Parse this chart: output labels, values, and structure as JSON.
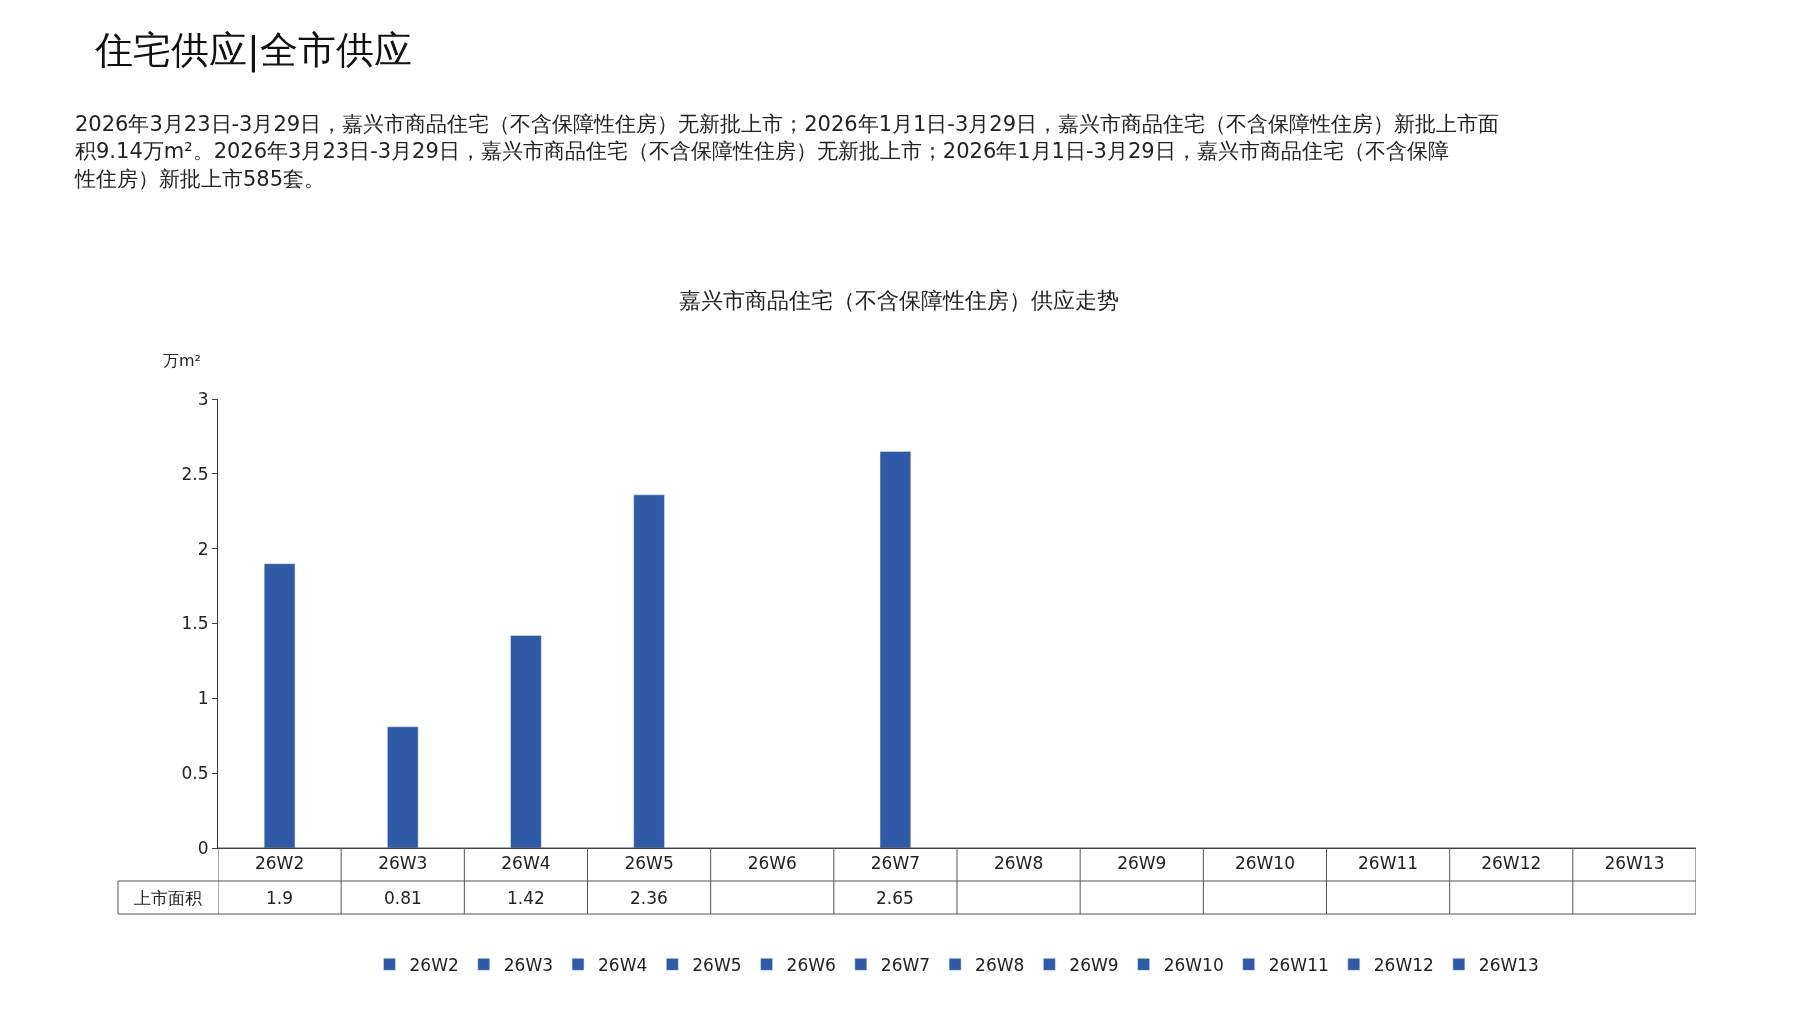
{
  "chart_data": {
    "type": "bar",
    "title": "嘉兴市商品住宅（不含保障性住房）供应走势",
    "ylabel": "万m²",
    "annotations": [
      "住宅供应|全市供应",
      "2026年3月23日-3月29日，嘉兴市商品住宅（不含保障性住房）无新批上市；2026年1月1日-3月29日，嘉兴市商品住宅（不含保障性住房）新批上市面积9.14万m²。2026年3月23日-3月29日，嘉兴市商品住宅（不含保障性住房）无新批上市；2026年1月1日-3月29日，嘉兴市商品住宅（不含保障性住房）新批上市585套。",
      "上市面积"
    ],
    "categories": [
      "26W2",
      "26W3",
      "26W4",
      "26W5",
      "26W6",
      "26W7",
      "26W8",
      "26W9",
      "26W10",
      "26W11",
      "26W12",
      "26W13"
    ],
    "series": [
      {
        "name": "26W2",
        "color": "#2e5aa8",
        "values": [
          1.9,
          null,
          null,
          null,
          null,
          null,
          null,
          null,
          null,
          null,
          null,
          null
        ]
      },
      {
        "name": "26W3",
        "color": "#2e5aa8",
        "values": [
          null,
          0.81,
          null,
          null,
          null,
          null,
          null,
          null,
          null,
          null,
          null,
          null
        ]
      },
      {
        "name": "26W4",
        "color": "#2e5aa8",
        "values": [
          null,
          null,
          1.42,
          null,
          null,
          null,
          null,
          null,
          null,
          null,
          null,
          null
        ]
      },
      {
        "name": "26W5",
        "color": "#2e5aa8",
        "values": [
          null,
          null,
          null,
          2.36,
          null,
          null,
          null,
          null,
          null,
          null,
          null,
          null
        ]
      },
      {
        "name": "26W6",
        "color": "#2e5aa8",
        "values": [
          null,
          null,
          null,
          null,
          null,
          null,
          null,
          null,
          null,
          null,
          null,
          null
        ]
      },
      {
        "name": "26W7",
        "color": "#2e5aa8",
        "values": [
          null,
          null,
          null,
          null,
          null,
          2.65,
          null,
          null,
          null,
          null,
          null,
          null
        ]
      },
      {
        "name": "26W8",
        "color": "#2e5aa8",
        "values": [
          null,
          null,
          null,
          null,
          null,
          null,
          null,
          null,
          null,
          null,
          null,
          null
        ]
      },
      {
        "name": "26W9",
        "color": "#2e5aa8",
        "values": [
          null,
          null,
          null,
          null,
          null,
          null,
          null,
          null,
          null,
          null,
          null,
          null
        ]
      },
      {
        "name": "26W10",
        "color": "#2e5aa8",
        "values": [
          null,
          null,
          null,
          null,
          null,
          null,
          null,
          null,
          null,
          null,
          null,
          null
        ]
      },
      {
        "name": "26W11",
        "color": "#2e5aa8",
        "values": [
          null,
          null,
          null,
          null,
          null,
          null,
          null,
          null,
          null,
          null,
          null,
          null
        ]
      },
      {
        "name": "26W12",
        "color": "#2e5aa8",
        "values": [
          null,
          null,
          null,
          null,
          null,
          null,
          null,
          null,
          null,
          null,
          null,
          null
        ]
      },
      {
        "name": "26W13",
        "color": "#2e5aa8",
        "values": [
          null,
          null,
          null,
          null,
          null,
          null,
          null,
          null,
          null,
          null,
          null,
          null
        ]
      }
    ],
    "ylim": [
      0,
      3
    ],
    "yticks": [
      0,
      0.5,
      1,
      1.5,
      2,
      2.5,
      3
    ],
    "data_labels": true,
    "legend": "bottom"
  }
}
